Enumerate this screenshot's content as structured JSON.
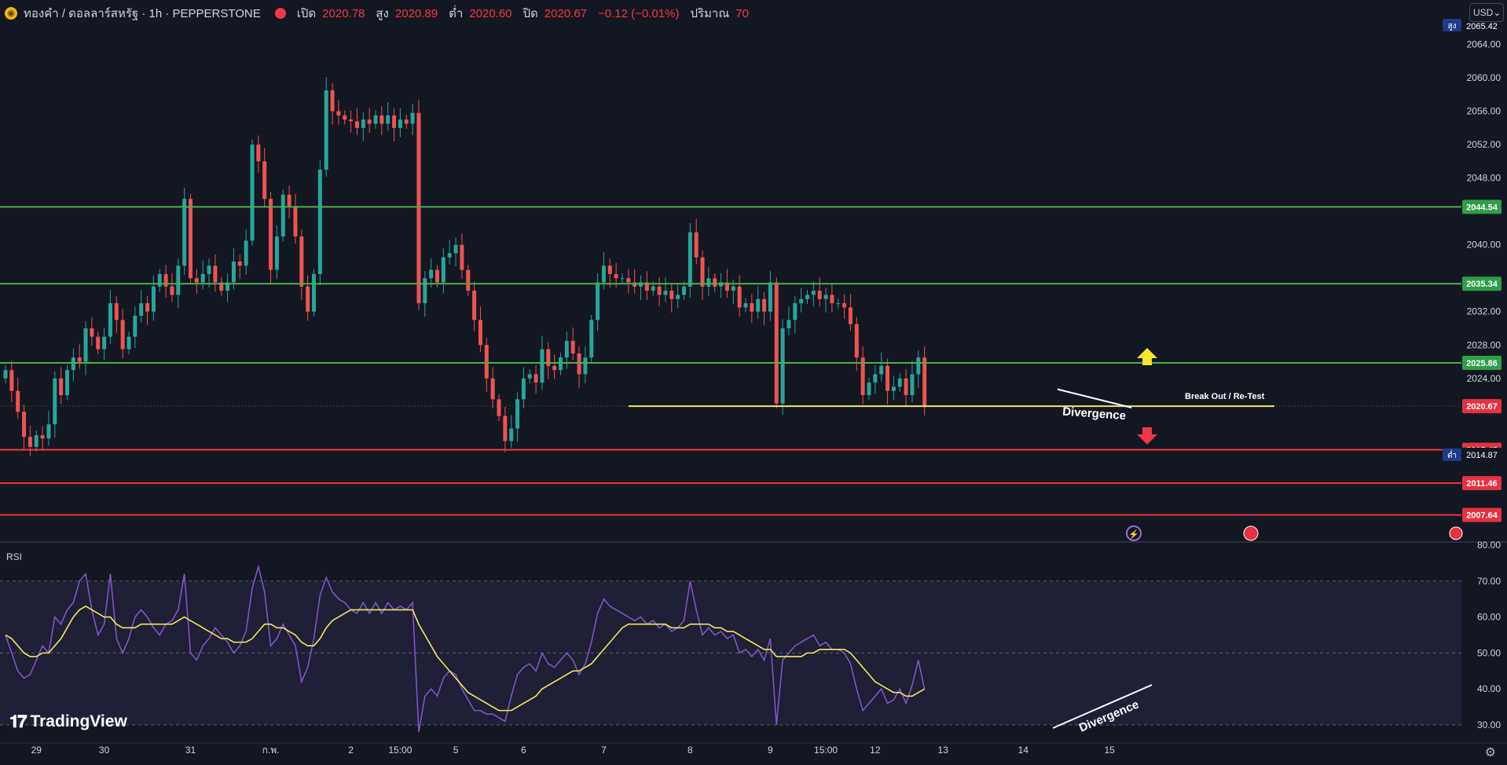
{
  "header": {
    "symbol_icon": "gold-coin-icon",
    "title": "ทองคำ / ดอลลาร์สหรัฐ · 1h · PEPPERSTONE",
    "open_label": "เปิด",
    "open_value": "2020.78",
    "high_label": "สูง",
    "high_value": "2020.89",
    "low_label": "ต่ำ",
    "low_value": "2020.60",
    "close_label": "ปิด",
    "close_value": "2020.67",
    "change_value": "−0.12 (−0.01%)",
    "volume_label": "ปริมาณ",
    "volume_value": "70"
  },
  "currency": "USD",
  "rsi_title": "RSI",
  "logo_text": "TradingView",
  "colors": {
    "background": "#131722",
    "up": "#26a69a",
    "down": "#ef5350",
    "support": "#f23645",
    "resistance": "#4caf50",
    "level": "#f5e663",
    "rsi": "#7e57c2",
    "rsi_ma": "#f5e663"
  },
  "chart_data": [
    {
      "type": "candlestick",
      "title": "ทองคำ / ดอลลาร์สหรัฐ · 1h · PEPPERSTONE",
      "ylim": [
        2004.6,
        2066.5
      ],
      "y_ticks": [
        2064.0,
        2060.0,
        2056.0,
        2052.0,
        2048.0,
        2040.0,
        2032.0,
        2028.0,
        2024.0
      ],
      "x_labels": [
        "29",
        "30",
        "31",
        "ก.พ.",
        "2",
        "15:00",
        "5",
        "6",
        "7",
        "8",
        "9",
        "15:00",
        "12",
        "13",
        "14",
        "15"
      ],
      "x_label_index": [
        5,
        16,
        30,
        43,
        56,
        64,
        73,
        84,
        97,
        111,
        124,
        133,
        141,
        152,
        165,
        179
      ],
      "horizontal_levels": [
        {
          "price": 2044.54,
          "label": "2044.54",
          "kind": "resistance"
        },
        {
          "price": 2035.34,
          "label": "2035.34",
          "kind": "resistance"
        },
        {
          "price": 2025.86,
          "label": "2025.86",
          "kind": "resistance"
        },
        {
          "price": 2020.67,
          "label": "2020.67",
          "kind": "current-price"
        },
        {
          "price": 2015.45,
          "label": "2015.45",
          "kind": "support"
        },
        {
          "price": 2011.46,
          "label": "2011.46",
          "kind": "support"
        },
        {
          "price": 2007.64,
          "label": "2007.64",
          "kind": "support"
        }
      ],
      "axis_badges": [
        {
          "prefix": "สูง",
          "value": "2065.42"
        },
        {
          "prefix": "ต่ำ",
          "value": "2014.87"
        }
      ],
      "annotations": [
        "Break Out / Re-Test",
        "Divergence"
      ],
      "closes": [
        2025.0,
        2022.5,
        2020.0,
        2017.0,
        2015.8,
        2017.2,
        2016.8,
        2018.5,
        2024.0,
        2022.0,
        2025.0,
        2026.5,
        2026.0,
        2030.0,
        2029.0,
        2027.5,
        2029.0,
        2033.0,
        2031.0,
        2027.5,
        2029.0,
        2031.5,
        2033.0,
        2032.0,
        2035.0,
        2036.5,
        2035.0,
        2034.0,
        2037.5,
        2045.5,
        2036.0,
        2035.5,
        2036.5,
        2037.5,
        2035.5,
        2034.5,
        2035.5,
        2038.0,
        2037.5,
        2040.5,
        2052.0,
        2050.0,
        2045.5,
        2037.0,
        2041.0,
        2046.0,
        2044.5,
        2041.0,
        2035.0,
        2032.0,
        2036.5,
        2049.0,
        2058.5,
        2056.0,
        2055.5,
        2055.0,
        2054.8,
        2054.0,
        2055.0,
        2054.5,
        2055.5,
        2054.5,
        2055.5,
        2054.0,
        2055.0,
        2054.5,
        2055.8,
        2033.0,
        2036.0,
        2037.0,
        2035.5,
        2038.5,
        2039.0,
        2040.0,
        2037.0,
        2034.5,
        2031.0,
        2028.0,
        2024.0,
        2021.5,
        2019.5,
        2016.5,
        2018.0,
        2021.5,
        2024.0,
        2024.5,
        2023.5,
        2027.5,
        2025.5,
        2025.0,
        2026.5,
        2028.5,
        2027.0,
        2024.5,
        2026.5,
        2031.0,
        2035.5,
        2037.5,
        2036.5,
        2036.0,
        2036.0,
        2035.5,
        2035.0,
        2035.5,
        2034.5,
        2035.0,
        2034.0,
        2034.5,
        2033.5,
        2034.0,
        2035.0,
        2041.5,
        2038.5,
        2035.0,
        2036.0,
        2035.0,
        2035.5,
        2034.5,
        2035.0,
        2032.5,
        2033.0,
        2032.0,
        2033.5,
        2032.0,
        2035.5,
        2021.0,
        2030.0,
        2031.0,
        2033.0,
        2033.5,
        2034.0,
        2034.5,
        2033.5,
        2034.0,
        2033.0,
        2033.0,
        2032.5,
        2030.5,
        2026.5,
        2022.0,
        2023.5,
        2024.5,
        2025.5,
        2022.5,
        2023.0,
        2024.0,
        2022.0,
        2024.5,
        2026.5,
        2020.67
      ]
    },
    {
      "type": "line",
      "title": "RSI",
      "ylim": [
        25.4,
        80.0
      ],
      "y_ticks": [
        80.0,
        70.0,
        60.0,
        50.0,
        40.0,
        30.0
      ],
      "band": [
        30,
        70
      ],
      "series": [
        {
          "name": "RSI",
          "values": [
            55,
            50,
            45,
            43,
            44,
            48,
            52,
            50,
            60,
            58,
            62,
            64,
            70,
            72,
            62,
            55,
            58,
            72,
            54,
            50,
            54,
            60,
            62,
            60,
            57,
            55,
            58,
            59,
            62,
            72,
            50,
            48,
            52,
            54,
            57,
            55,
            53,
            50,
            52,
            56,
            68,
            74,
            67,
            52,
            54,
            58,
            55,
            52,
            42,
            46,
            54,
            66,
            71,
            67,
            65,
            64,
            62,
            61,
            64,
            61,
            64,
            61,
            64,
            62,
            63,
            62,
            64,
            28,
            38,
            40,
            38,
            43,
            45,
            44,
            40,
            37,
            34,
            34,
            33,
            33,
            32,
            31,
            38,
            44,
            46,
            47,
            45,
            50,
            47,
            46,
            48,
            50,
            48,
            44,
            47,
            53,
            61,
            65,
            63,
            62,
            61,
            60,
            59,
            60,
            58,
            59,
            57,
            58,
            56,
            57,
            59,
            70,
            62,
            55,
            57,
            55,
            56,
            54,
            55,
            50,
            51,
            49,
            51,
            48,
            54,
            30,
            48,
            50,
            52,
            53,
            54,
            55,
            52,
            53,
            51,
            51,
            50,
            47,
            40,
            34,
            36,
            38,
            40,
            36,
            37,
            40,
            36,
            41,
            48,
            40
          ]
        },
        {
          "name": "RSI-based MA",
          "values": [
            55,
            54,
            52,
            50,
            49,
            49,
            50,
            50,
            52,
            54,
            57,
            60,
            62,
            63,
            62,
            61,
            60,
            60,
            58,
            57,
            57,
            57,
            58,
            58,
            58,
            58,
            58,
            58,
            59,
            60,
            59,
            58,
            57,
            56,
            55,
            54,
            54,
            53,
            53,
            53,
            54,
            56,
            58,
            58,
            57,
            57,
            56,
            55,
            53,
            52,
            52,
            54,
            57,
            59,
            60,
            61,
            62,
            62,
            62,
            62,
            62,
            62,
            62,
            62,
            62,
            62,
            62,
            58,
            55,
            52,
            49,
            47,
            45,
            43,
            41,
            39,
            38,
            37,
            36,
            35,
            34,
            34,
            34,
            35,
            36,
            37,
            38,
            40,
            41,
            42,
            43,
            44,
            45,
            45,
            46,
            47,
            49,
            51,
            53,
            55,
            57,
            58,
            58,
            58,
            58,
            58,
            58,
            58,
            57,
            57,
            57,
            58,
            58,
            58,
            58,
            57,
            57,
            56,
            56,
            55,
            54,
            53,
            52,
            51,
            51,
            49,
            49,
            49,
            49,
            49,
            50,
            50,
            51,
            51,
            51,
            51,
            51,
            50,
            48,
            46,
            44,
            42,
            41,
            40,
            39,
            39,
            38,
            38,
            39,
            40
          ]
        }
      ],
      "annotations": [
        "Divergence"
      ]
    }
  ]
}
